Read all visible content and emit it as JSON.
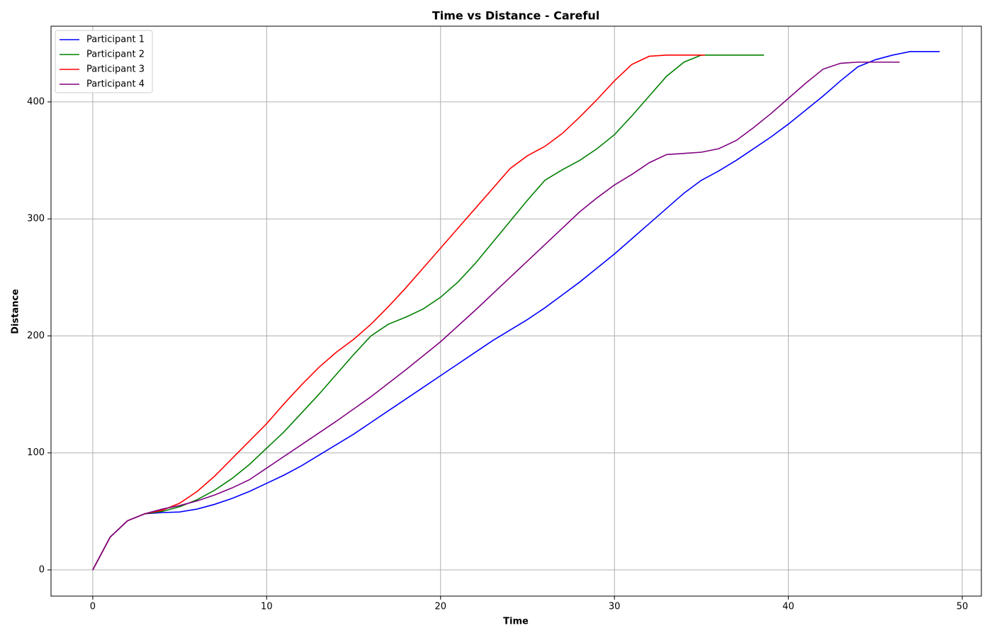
{
  "chart_data": {
    "type": "line",
    "title": "Time vs Distance - Careful",
    "x_label": "Time",
    "y_label": "Distance",
    "xlim": [
      -2.4,
      51.1
    ],
    "ylim": [
      -22.4,
      464.7
    ],
    "xticks": [
      0,
      10,
      20,
      30,
      40,
      50
    ],
    "yticks": [
      0,
      100,
      200,
      300,
      400
    ],
    "grid": true,
    "legend": "upper left",
    "series": [
      {
        "name": "Participant 1",
        "color": "#0000ff",
        "x": [
          0,
          1,
          2,
          3,
          4,
          5,
          6,
          7,
          8,
          9,
          10,
          11,
          12,
          13,
          14,
          15,
          16,
          17,
          18,
          19,
          20,
          21,
          22,
          23,
          24,
          25,
          26,
          27,
          28,
          29,
          30,
          31,
          32,
          33,
          34,
          35,
          36,
          37,
          38,
          39,
          40,
          41,
          42,
          43,
          44,
          45,
          46,
          47,
          48,
          48.7
        ],
        "values": [
          0,
          28,
          42,
          48,
          49,
          49.5,
          52,
          56,
          61,
          67,
          74,
          81,
          89,
          98,
          107,
          116,
          126,
          136,
          146,
          156,
          166,
          176,
          186,
          196,
          205,
          214,
          224,
          235,
          246,
          258,
          270,
          283,
          296,
          309,
          322,
          333,
          341,
          350,
          360,
          370,
          381,
          393,
          405,
          418,
          430,
          436,
          440,
          443,
          443,
          443
        ]
      },
      {
        "name": "Participant 2",
        "color": "#008000",
        "x": [
          0,
          1,
          2,
          3,
          4,
          5,
          6,
          7,
          8,
          9,
          10,
          11,
          12,
          13,
          14,
          15,
          16,
          17,
          18,
          19,
          20,
          21,
          22,
          23,
          24,
          25,
          26,
          27,
          28,
          29,
          30,
          31,
          32,
          33,
          34,
          35,
          36,
          37,
          38.6
        ],
        "values": [
          0,
          28,
          42,
          48,
          50,
          54,
          60,
          68,
          78,
          90,
          104,
          118,
          134,
          150,
          167,
          184,
          200,
          210,
          216,
          223,
          233,
          246,
          262,
          280,
          298,
          316,
          333,
          342,
          350,
          360,
          372,
          388,
          405,
          422,
          434,
          440,
          440,
          440,
          440
        ]
      },
      {
        "name": "Participant 3",
        "color": "#ff0000",
        "x": [
          0,
          1,
          2,
          3,
          4,
          5,
          6,
          7,
          8,
          9,
          10,
          11,
          12,
          13,
          14,
          15,
          16,
          17,
          18,
          19,
          20,
          21,
          22,
          23,
          24,
          25,
          26,
          27,
          28,
          29,
          30,
          31,
          32,
          33,
          34,
          35.2
        ],
        "values": [
          0,
          28,
          42,
          48,
          51,
          57,
          67,
          80,
          95,
          110,
          125,
          142,
          158,
          173,
          186,
          197,
          210,
          225,
          241,
          258,
          275,
          292,
          309,
          326,
          343,
          354,
          362,
          373,
          387,
          402,
          418,
          432,
          439,
          440,
          440,
          440
        ]
      },
      {
        "name": "Participant 4",
        "color": "#800080",
        "x": [
          0,
          1,
          2,
          3,
          4,
          5,
          6,
          7,
          8,
          9,
          10,
          12,
          14,
          16,
          18,
          20,
          22,
          24,
          25,
          26,
          27,
          28,
          29,
          30,
          31,
          32,
          33,
          34,
          35,
          36,
          37,
          38,
          39,
          40,
          41,
          42,
          43,
          44,
          46.4
        ],
        "values": [
          0,
          28,
          42,
          48,
          52,
          55,
          59,
          64,
          70,
          77,
          87,
          107,
          127,
          148,
          171,
          195,
          222,
          250,
          264,
          278,
          292,
          306,
          318,
          329,
          338,
          348,
          355,
          356,
          357,
          360,
          367,
          378,
          390,
          403,
          416,
          428,
          433,
          434,
          434
        ]
      }
    ]
  }
}
